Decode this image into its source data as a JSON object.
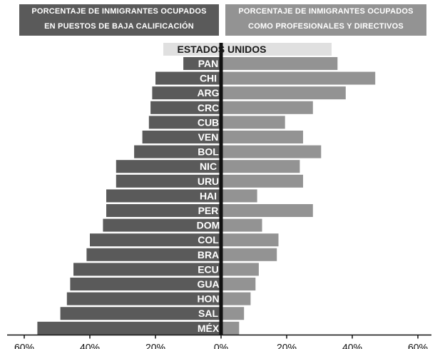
{
  "header": {
    "left_line1": "PORCENTAJE DE INMIGRANTES OCUPADOS",
    "left_line2": "EN PUESTOS DE BAJA CALIFICACIÓN",
    "right_line1": "PORCENTAJE DE INMIGRANTES OCUPADOS",
    "right_line2": "COMO PROFESIONALES Y DIRECTIVOS"
  },
  "chart_data": {
    "type": "bar",
    "subtitle": "ESTADOS UNIDOS",
    "categories": [
      "PAN",
      "CHI",
      "ARG",
      "CRC",
      "CUB",
      "VEN",
      "BOL",
      "NIC",
      "URU",
      "HAI",
      "PER",
      "DOM",
      "COL",
      "BRA",
      "ECU",
      "GUA",
      "HON",
      "SAL",
      "MÉX"
    ],
    "series": [
      {
        "name": "PORCENTAJE DE INMIGRANTES OCUPADOS EN PUESTOS DE BAJA CALIFICACIÓN",
        "color": "#5a5a5a",
        "values": [
          11.5,
          20,
          21,
          21.5,
          22,
          24,
          26.5,
          32,
          32,
          35,
          35,
          36,
          40,
          41,
          45,
          46,
          47,
          49,
          56
        ]
      },
      {
        "name": "PORCENTAJE DE INMIGRANTES OCUPADOS COMO PROFESIONALES Y DIRECTIVOS",
        "color": "#939393",
        "values": [
          35.5,
          47,
          38,
          28,
          19.5,
          25,
          30.5,
          24,
          25,
          11,
          28,
          12.5,
          17.5,
          17,
          11.5,
          10.5,
          9,
          7,
          5.5
        ]
      }
    ],
    "xlim": [
      -60,
      60
    ],
    "xticks": [
      "60%",
      "40%",
      "20%",
      "0%",
      "20%",
      "40%",
      "60%"
    ],
    "grid": false
  }
}
